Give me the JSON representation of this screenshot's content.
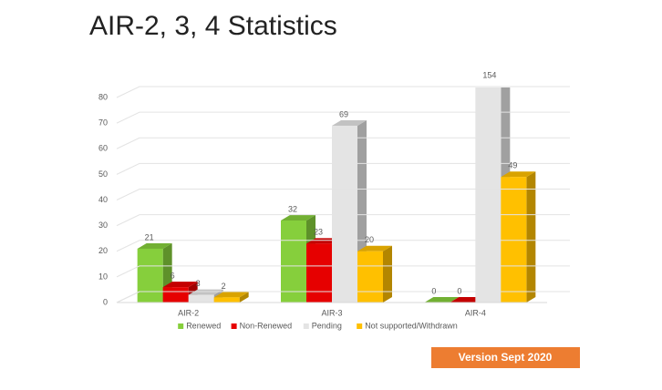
{
  "chart_data": {
    "type": "bar3d",
    "title": "AIR-2, 3, 4 Statistics",
    "categories": [
      "AIR-2",
      "AIR-3",
      "AIR-4"
    ],
    "series": [
      {
        "name": "Renewed",
        "color": "#86cf3c",
        "values": [
          21,
          32,
          0
        ]
      },
      {
        "name": "Non-Renewed",
        "color": "#e60000",
        "values": [
          6,
          23,
          0
        ]
      },
      {
        "name": "Pending",
        "color": "#e4e4e4",
        "values": [
          3,
          69,
          154
        ]
      },
      {
        "name": "Not supported/Withdrawn",
        "color": "#ffc000",
        "values": [
          2,
          20,
          49
        ]
      }
    ],
    "ylim": [
      0,
      80
    ],
    "yticks": [
      0,
      10,
      20,
      30,
      40,
      50,
      60,
      70,
      80
    ],
    "grid": true,
    "legend": "bottom"
  },
  "footer": {
    "version": "Version Sept 2020"
  }
}
